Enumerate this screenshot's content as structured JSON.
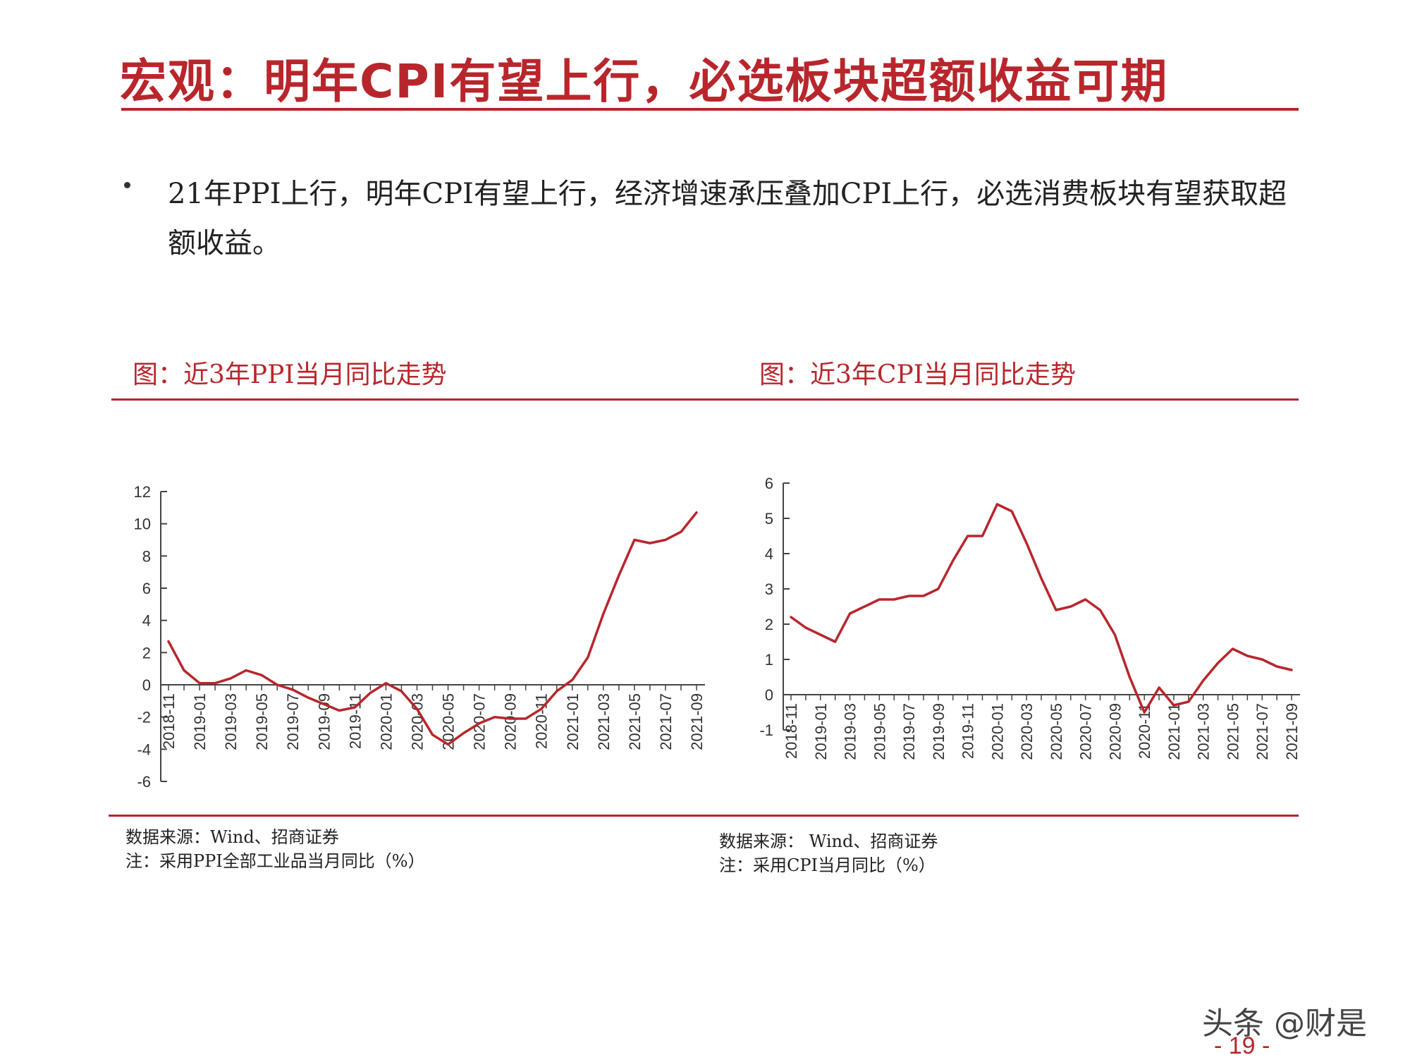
{
  "slide": {
    "title": "宏观：明年CPI有望上行，必选板块超额收益可期",
    "bullet": "21年PPI上行，明年CPI有望上行，经济增速承压叠加CPI上行，必选消费板块有望获取超额收益。",
    "page_number": "- 19 -",
    "watermark": "头条 @财是",
    "accent_color": "#b8262c"
  },
  "figures": [
    {
      "title": "图：近3年PPI当月同比走势",
      "source": "数据来源：Wind、招商证券",
      "note": "注：采用PPI全部工业品当月同比（%）"
    },
    {
      "title": "图：近3年CPI当月同比走势",
      "source": "数据来源： Wind、招商证券",
      "note": "注：采用CPI当月同比（%）"
    }
  ],
  "chart_data": [
    {
      "type": "line",
      "title": "图：近3年PPI当月同比走势",
      "ylim": [
        -6,
        12
      ],
      "yticks": [
        12,
        10,
        8,
        6,
        4,
        2,
        0,
        -2,
        -4,
        -6
      ],
      "xticks": [
        "2018-11",
        "2019-01",
        "2019-03",
        "2019-05",
        "2019-07",
        "2019-09",
        "2019-11",
        "2020-01",
        "2020-03",
        "2020-05",
        "2020-07",
        "2020-09",
        "2020-11",
        "2021-01",
        "2021-03",
        "2021-05",
        "2021-07",
        "2021-09"
      ],
      "grid": false,
      "series_color": "#b8262c",
      "x": [
        "2018-11",
        "2018-12",
        "2019-01",
        "2019-02",
        "2019-03",
        "2019-04",
        "2019-05",
        "2019-06",
        "2019-07",
        "2019-08",
        "2019-09",
        "2019-10",
        "2019-11",
        "2019-12",
        "2020-01",
        "2020-02",
        "2020-03",
        "2020-04",
        "2020-05",
        "2020-06",
        "2020-07",
        "2020-08",
        "2020-09",
        "2020-10",
        "2020-11",
        "2020-12",
        "2021-01",
        "2021-02",
        "2021-03",
        "2021-04",
        "2021-05",
        "2021-06",
        "2021-07",
        "2021-08",
        "2021-09"
      ],
      "values": [
        2.7,
        0.9,
        0.1,
        0.1,
        0.4,
        0.9,
        0.6,
        0.0,
        -0.3,
        -0.8,
        -1.2,
        -1.6,
        -1.4,
        -0.5,
        0.1,
        -0.4,
        -1.5,
        -3.1,
        -3.7,
        -3.0,
        -2.4,
        -2.0,
        -2.1,
        -2.1,
        -1.5,
        -0.4,
        0.3,
        1.7,
        4.4,
        6.8,
        9.0,
        8.8,
        9.0,
        9.5,
        10.7
      ]
    },
    {
      "type": "line",
      "title": "图：近3年CPI当月同比走势",
      "ylim": [
        -1,
        6
      ],
      "yticks": [
        6,
        5,
        4,
        3,
        2,
        1,
        0,
        -1
      ],
      "xticks": [
        "2018-11",
        "2019-01",
        "2019-03",
        "2019-05",
        "2019-07",
        "2019-09",
        "2019-11",
        "2020-01",
        "2020-03",
        "2020-05",
        "2020-07",
        "2020-09",
        "2020-11",
        "2021-01",
        "2021-03",
        "2021-05",
        "2021-07",
        "2021-09"
      ],
      "grid": false,
      "series_color": "#b8262c",
      "x": [
        "2018-11",
        "2018-12",
        "2019-01",
        "2019-02",
        "2019-03",
        "2019-04",
        "2019-05",
        "2019-06",
        "2019-07",
        "2019-08",
        "2019-09",
        "2019-10",
        "2019-11",
        "2019-12",
        "2020-01",
        "2020-02",
        "2020-03",
        "2020-04",
        "2020-05",
        "2020-06",
        "2020-07",
        "2020-08",
        "2020-09",
        "2020-10",
        "2020-11",
        "2020-12",
        "2021-01",
        "2021-02",
        "2021-03",
        "2021-04",
        "2021-05",
        "2021-06",
        "2021-07",
        "2021-08",
        "2021-09"
      ],
      "values": [
        2.2,
        1.9,
        1.7,
        1.5,
        2.3,
        2.5,
        2.7,
        2.7,
        2.8,
        2.8,
        3.0,
        3.8,
        4.5,
        4.5,
        5.4,
        5.2,
        4.3,
        3.3,
        2.4,
        2.5,
        2.7,
        2.4,
        1.7,
        0.5,
        -0.5,
        0.2,
        -0.3,
        -0.2,
        0.4,
        0.9,
        1.3,
        1.1,
        1.0,
        0.8,
        0.7
      ]
    }
  ]
}
